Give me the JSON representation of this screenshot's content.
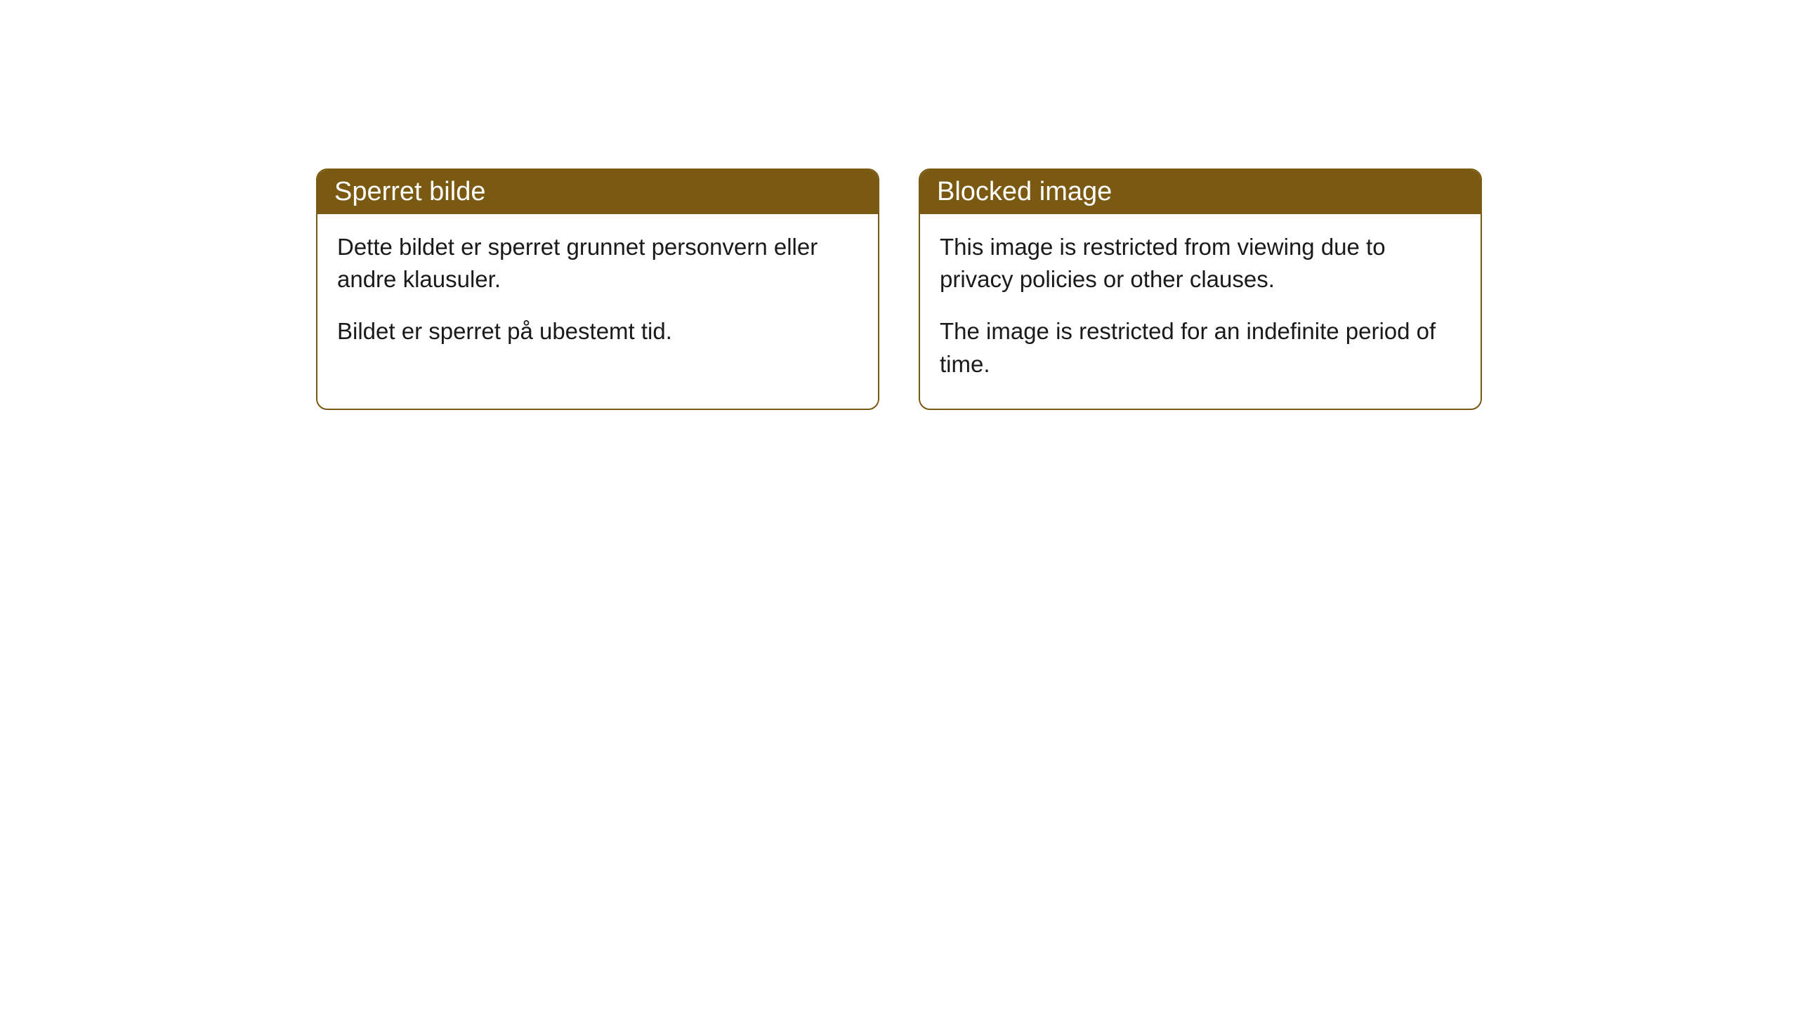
{
  "cards": [
    {
      "title": "Sperret bilde",
      "paragraph1": "Dette bildet er sperret grunnet personvern eller andre klausuler.",
      "paragraph2": "Bildet er sperret på ubestemt tid."
    },
    {
      "title": "Blocked image",
      "paragraph1": "This image is restricted from viewing due to privacy policies or other clauses.",
      "paragraph2": "The image is restricted for an indefinite period of time."
    }
  ],
  "styling": {
    "header_bg_color": "#7a5a12",
    "header_text_color": "#ffffff",
    "border_color": "#7a5a12",
    "body_bg_color": "#ffffff",
    "body_text_color": "#1a1a1a",
    "border_radius": 16,
    "header_fontsize": 38,
    "body_fontsize": 33
  }
}
